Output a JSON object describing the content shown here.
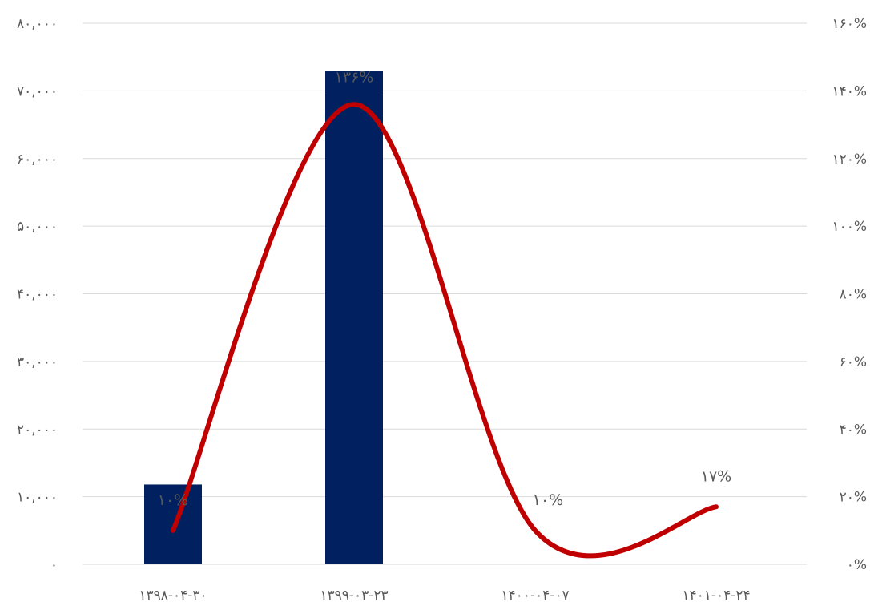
{
  "chart_data": {
    "type": "bar",
    "categories": [
      "۱۳۹۸-۰۴-۳۰",
      "۱۳۹۹-۰۳-۲۳",
      "۱۴۰۰-۰۴-۰۷",
      "۱۴۰۱-۰۴-۲۴"
    ],
    "series": [
      {
        "type": "bar",
        "axis": "left",
        "color": "#002060",
        "values": [
          11800,
          73000,
          0,
          0
        ]
      },
      {
        "type": "line",
        "axis": "right",
        "color": "#c00000",
        "smooth": true,
        "values": [
          10,
          136,
          10,
          17
        ],
        "data_labels": [
          "۱۰%",
          "۱۳۶%",
          "۱۰%",
          "۱۷%"
        ]
      }
    ],
    "y_left": {
      "lim": [
        0,
        80000
      ],
      "ticks": [
        0,
        10000,
        20000,
        30000,
        40000,
        50000,
        60000,
        70000,
        80000
      ],
      "tick_labels": [
        "۰",
        "۱۰,۰۰۰",
        "۲۰,۰۰۰",
        "۳۰,۰۰۰",
        "۴۰,۰۰۰",
        "۵۰,۰۰۰",
        "۶۰,۰۰۰",
        "۷۰,۰۰۰",
        "۸۰,۰۰۰"
      ]
    },
    "y_right": {
      "lim": [
        0,
        160
      ],
      "ticks": [
        0,
        20,
        40,
        60,
        80,
        100,
        120,
        140,
        160
      ],
      "tick_labels": [
        "۰%",
        "۲۰%",
        "۴۰%",
        "۶۰%",
        "۸۰%",
        "۱۰۰%",
        "۱۲۰%",
        "۱۴۰%",
        "۱۶۰%"
      ]
    },
    "grid": true,
    "legend": "none"
  }
}
